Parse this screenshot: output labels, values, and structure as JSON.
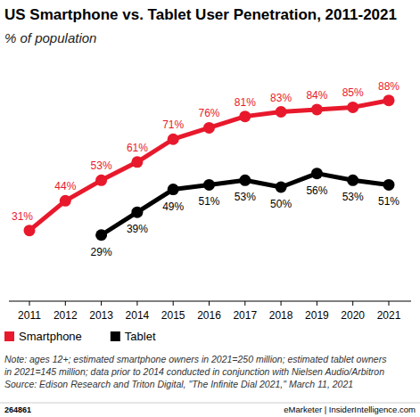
{
  "chart_data": {
    "type": "line",
    "title": "US Smartphone vs. Tablet User Penetration, 2011-2021",
    "subtitle": "% of population",
    "categories": [
      "2011",
      "2012",
      "2013",
      "2014",
      "2015",
      "2016",
      "2017",
      "2018",
      "2019",
      "2020",
      "2021"
    ],
    "series": [
      {
        "name": "Smartphone",
        "color": "#e8192c",
        "marker": "circle",
        "line_style": "solid",
        "values": [
          31,
          44,
          53,
          61,
          71,
          76,
          81,
          83,
          84,
          85,
          88
        ],
        "value_labels": [
          "31%",
          "44%",
          "53%",
          "61%",
          "71%",
          "76%",
          "81%",
          "83%",
          "84%",
          "85%",
          "88%"
        ]
      },
      {
        "name": "Tablet",
        "color": "#000000",
        "marker": "circle",
        "line_style": "solid",
        "values": [
          null,
          null,
          29,
          39,
          49,
          51,
          53,
          50,
          56,
          53,
          51
        ],
        "value_labels": [
          null,
          null,
          "29%",
          "39%",
          "49%",
          "51%",
          "53%",
          "50%",
          "56%",
          "53%",
          "51%"
        ]
      }
    ],
    "ylim": [
      0,
      100
    ],
    "tick_labels": "x",
    "grid": false,
    "legend": "bottom-left",
    "data_labels": true,
    "note": [
      "Note: ages 12+; estimated smartphone owners in 2021=250 million; estimated tablet owners",
      "in 2021=145 million; data prior to 2014 conducted in conjunction with Nielsen Audio/Arbitron",
      "Source: Edison Research and Triton Digital, \"The Infinite Dial 2021,\" March 11, 2021"
    ],
    "chart_id": "264861",
    "brand": "eMarketer | InsiderIntelligence.com"
  }
}
